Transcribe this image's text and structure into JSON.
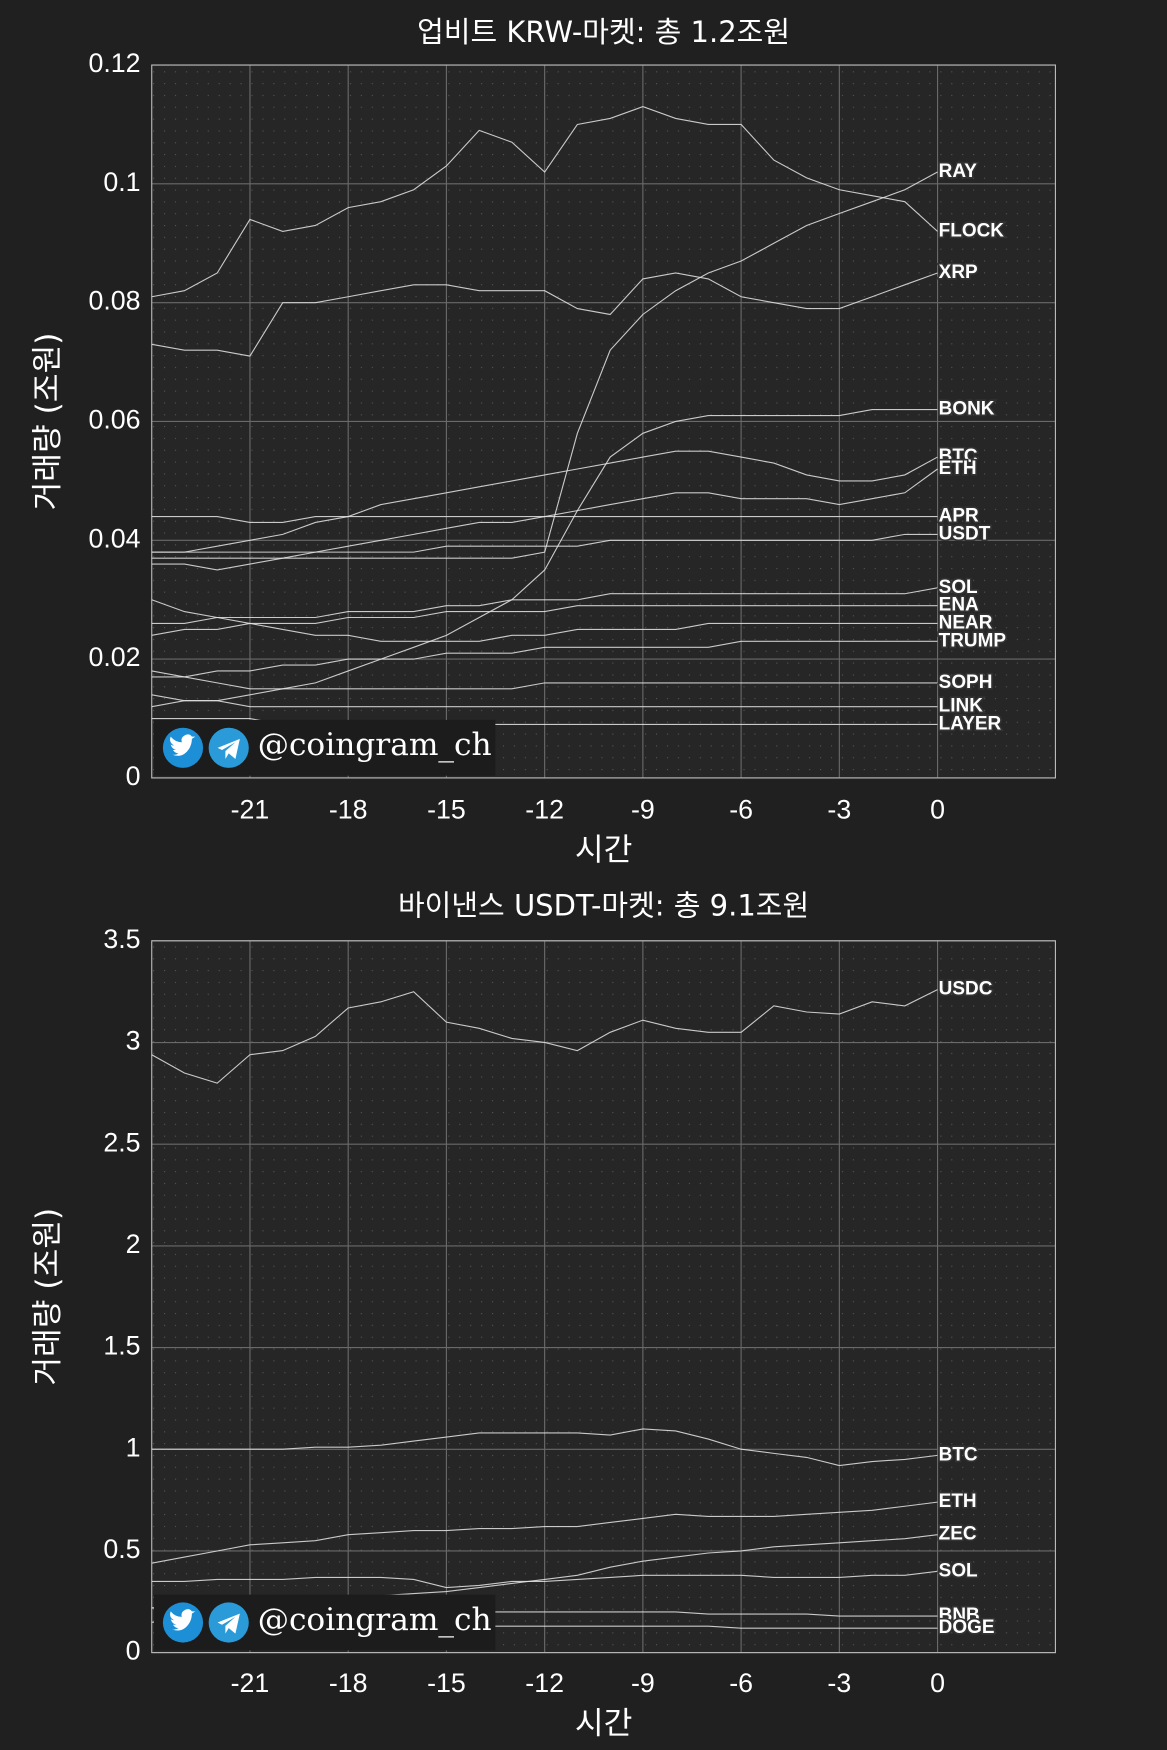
{
  "chart_data": [
    {
      "type": "line",
      "title": "업비트 KRW-마켓: 총 1.2조원",
      "xlabel": "시간",
      "ylabel": "거래량 (조원)",
      "watermark": "@coingram_ch",
      "x": [
        -24,
        -23,
        -22,
        -21,
        -20,
        -19,
        -18,
        -17,
        -16,
        -15,
        -14,
        -13,
        -12,
        -11,
        -10,
        -9,
        -8,
        -7,
        -6,
        -5,
        -4,
        -3,
        -2,
        -1,
        0
      ],
      "xlim": [
        -24,
        3.6
      ],
      "xticks": [
        -21,
        -18,
        -15,
        -12,
        -9,
        -6,
        -3,
        0
      ],
      "ylim": [
        0,
        0.12
      ],
      "yticks": [
        0,
        0.02,
        0.04,
        0.06,
        0.08,
        0.1,
        0.12
      ],
      "grid": true,
      "line_color": "#e6e6e6",
      "series": [
        {
          "name": "RAY",
          "values": [
            0.037,
            0.037,
            0.037,
            0.037,
            0.037,
            0.037,
            0.037,
            0.037,
            0.037,
            0.037,
            0.037,
            0.037,
            0.038,
            0.058,
            0.072,
            0.078,
            0.082,
            0.085,
            0.087,
            0.09,
            0.093,
            0.095,
            0.097,
            0.099,
            0.102
          ]
        },
        {
          "name": "FLOCK",
          "values": [
            0.081,
            0.082,
            0.085,
            0.094,
            0.092,
            0.093,
            0.096,
            0.097,
            0.099,
            0.103,
            0.109,
            0.107,
            0.102,
            0.11,
            0.111,
            0.113,
            0.111,
            0.11,
            0.11,
            0.104,
            0.101,
            0.099,
            0.098,
            0.097,
            0.092
          ]
        },
        {
          "name": "XRP",
          "values": [
            0.073,
            0.072,
            0.072,
            0.071,
            0.08,
            0.08,
            0.081,
            0.082,
            0.083,
            0.083,
            0.082,
            0.082,
            0.082,
            0.079,
            0.078,
            0.084,
            0.085,
            0.084,
            0.081,
            0.08,
            0.079,
            0.079,
            0.081,
            0.083,
            0.085
          ]
        },
        {
          "name": "BONK",
          "values": [
            0.012,
            0.013,
            0.013,
            0.014,
            0.015,
            0.016,
            0.018,
            0.02,
            0.022,
            0.024,
            0.027,
            0.03,
            0.035,
            0.045,
            0.054,
            0.058,
            0.06,
            0.061,
            0.061,
            0.061,
            0.061,
            0.061,
            0.062,
            0.062,
            0.062
          ]
        },
        {
          "name": "BTC",
          "values": [
            0.038,
            0.038,
            0.039,
            0.04,
            0.041,
            0.043,
            0.044,
            0.046,
            0.047,
            0.048,
            0.049,
            0.05,
            0.051,
            0.052,
            0.053,
            0.054,
            0.055,
            0.055,
            0.054,
            0.053,
            0.051,
            0.05,
            0.05,
            0.051,
            0.054
          ]
        },
        {
          "name": "ETH",
          "values": [
            0.036,
            0.036,
            0.035,
            0.036,
            0.037,
            0.038,
            0.039,
            0.04,
            0.041,
            0.042,
            0.043,
            0.043,
            0.044,
            0.045,
            0.046,
            0.047,
            0.048,
            0.048,
            0.047,
            0.047,
            0.047,
            0.046,
            0.047,
            0.048,
            0.052
          ]
        },
        {
          "name": "APR",
          "values": [
            0.044,
            0.044,
            0.044,
            0.043,
            0.043,
            0.044,
            0.044,
            0.044,
            0.044,
            0.044,
            0.044,
            0.044,
            0.044,
            0.044,
            0.044,
            0.044,
            0.044,
            0.044,
            0.044,
            0.044,
            0.044,
            0.044,
            0.044,
            0.044,
            0.044
          ]
        },
        {
          "name": "USDT",
          "values": [
            0.038,
            0.038,
            0.038,
            0.038,
            0.038,
            0.038,
            0.038,
            0.038,
            0.038,
            0.039,
            0.039,
            0.039,
            0.039,
            0.039,
            0.04,
            0.04,
            0.04,
            0.04,
            0.04,
            0.04,
            0.04,
            0.04,
            0.04,
            0.041,
            0.041
          ]
        },
        {
          "name": "SOL",
          "values": [
            0.026,
            0.026,
            0.027,
            0.027,
            0.027,
            0.027,
            0.028,
            0.028,
            0.028,
            0.029,
            0.029,
            0.03,
            0.03,
            0.03,
            0.031,
            0.031,
            0.031,
            0.031,
            0.031,
            0.031,
            0.031,
            0.031,
            0.031,
            0.031,
            0.032
          ]
        },
        {
          "name": "ENA",
          "values": [
            0.024,
            0.025,
            0.025,
            0.026,
            0.026,
            0.026,
            0.027,
            0.027,
            0.027,
            0.028,
            0.028,
            0.028,
            0.028,
            0.029,
            0.029,
            0.029,
            0.029,
            0.029,
            0.029,
            0.029,
            0.029,
            0.029,
            0.029,
            0.029,
            0.029
          ]
        },
        {
          "name": "NEAR",
          "values": [
            0.03,
            0.028,
            0.027,
            0.026,
            0.025,
            0.024,
            0.024,
            0.023,
            0.023,
            0.023,
            0.023,
            0.024,
            0.024,
            0.025,
            0.025,
            0.025,
            0.025,
            0.026,
            0.026,
            0.026,
            0.026,
            0.026,
            0.026,
            0.026,
            0.026
          ]
        },
        {
          "name": "TRUMP",
          "values": [
            0.017,
            0.017,
            0.018,
            0.018,
            0.019,
            0.019,
            0.02,
            0.02,
            0.02,
            0.021,
            0.021,
            0.021,
            0.022,
            0.022,
            0.022,
            0.022,
            0.022,
            0.022,
            0.023,
            0.023,
            0.023,
            0.023,
            0.023,
            0.023,
            0.023
          ]
        },
        {
          "name": "SOPH",
          "values": [
            0.018,
            0.017,
            0.016,
            0.015,
            0.015,
            0.015,
            0.015,
            0.015,
            0.015,
            0.015,
            0.015,
            0.015,
            0.016,
            0.016,
            0.016,
            0.016,
            0.016,
            0.016,
            0.016,
            0.016,
            0.016,
            0.016,
            0.016,
            0.016,
            0.016
          ]
        },
        {
          "name": "LINK",
          "values": [
            0.014,
            0.013,
            0.013,
            0.012,
            0.012,
            0.012,
            0.012,
            0.012,
            0.012,
            0.012,
            0.012,
            0.012,
            0.012,
            0.012,
            0.012,
            0.012,
            0.012,
            0.012,
            0.012,
            0.012,
            0.012,
            0.012,
            0.012,
            0.012,
            0.012
          ]
        },
        {
          "name": "LAYER",
          "values": [
            0.01,
            0.01,
            0.01,
            0.01,
            0.009,
            0.009,
            0.009,
            0.009,
            0.009,
            0.009,
            0.009,
            0.009,
            0.009,
            0.009,
            0.009,
            0.009,
            0.009,
            0.009,
            0.009,
            0.009,
            0.009,
            0.009,
            0.009,
            0.009,
            0.009
          ]
        }
      ]
    },
    {
      "type": "line",
      "title": "바이낸스 USDT-마켓: 총 9.1조원",
      "xlabel": "시간",
      "ylabel": "거래량 (조원)",
      "watermark": "@coingram_ch",
      "x": [
        -24,
        -23,
        -22,
        -21,
        -20,
        -19,
        -18,
        -17,
        -16,
        -15,
        -14,
        -13,
        -12,
        -11,
        -10,
        -9,
        -8,
        -7,
        -6,
        -5,
        -4,
        -3,
        -2,
        -1,
        0
      ],
      "xlim": [
        -24,
        3.6
      ],
      "xticks": [
        -21,
        -18,
        -15,
        -12,
        -9,
        -6,
        -3,
        0
      ],
      "ylim": [
        0,
        3.5
      ],
      "yticks": [
        0,
        0.5,
        1,
        1.5,
        2,
        2.5,
        3,
        3.5
      ],
      "grid": true,
      "line_color": "#e6e6e6",
      "series": [
        {
          "name": "USDC",
          "values": [
            2.94,
            2.85,
            2.8,
            2.94,
            2.96,
            3.03,
            3.17,
            3.2,
            3.25,
            3.1,
            3.07,
            3.02,
            3.0,
            2.96,
            3.05,
            3.11,
            3.07,
            3.05,
            3.05,
            3.18,
            3.15,
            3.14,
            3.2,
            3.18,
            3.26
          ]
        },
        {
          "name": "BTC",
          "values": [
            1.0,
            1.0,
            1.0,
            1.0,
            1.0,
            1.01,
            1.01,
            1.02,
            1.04,
            1.06,
            1.08,
            1.08,
            1.08,
            1.08,
            1.07,
            1.1,
            1.09,
            1.05,
            1.0,
            0.98,
            0.96,
            0.92,
            0.94,
            0.95,
            0.97
          ]
        },
        {
          "name": "ETH",
          "values": [
            0.44,
            0.47,
            0.5,
            0.53,
            0.54,
            0.55,
            0.58,
            0.59,
            0.6,
            0.6,
            0.61,
            0.61,
            0.62,
            0.62,
            0.64,
            0.66,
            0.68,
            0.67,
            0.67,
            0.67,
            0.68,
            0.69,
            0.7,
            0.72,
            0.74
          ]
        },
        {
          "name": "ZEC",
          "values": [
            0.22,
            0.22,
            0.23,
            0.24,
            0.25,
            0.26,
            0.27,
            0.28,
            0.29,
            0.3,
            0.32,
            0.34,
            0.36,
            0.38,
            0.42,
            0.45,
            0.47,
            0.49,
            0.5,
            0.52,
            0.53,
            0.54,
            0.55,
            0.56,
            0.58
          ]
        },
        {
          "name": "SOL",
          "values": [
            0.35,
            0.35,
            0.36,
            0.36,
            0.36,
            0.37,
            0.37,
            0.37,
            0.36,
            0.32,
            0.33,
            0.35,
            0.35,
            0.36,
            0.37,
            0.38,
            0.38,
            0.38,
            0.38,
            0.37,
            0.37,
            0.37,
            0.38,
            0.38,
            0.4
          ]
        },
        {
          "name": "BNB",
          "values": [
            0.22,
            0.22,
            0.22,
            0.21,
            0.21,
            0.21,
            0.21,
            0.21,
            0.2,
            0.2,
            0.2,
            0.2,
            0.2,
            0.2,
            0.2,
            0.2,
            0.2,
            0.19,
            0.19,
            0.19,
            0.19,
            0.18,
            0.18,
            0.18,
            0.18
          ]
        },
        {
          "name": "DOGE",
          "values": [
            0.15,
            0.15,
            0.15,
            0.14,
            0.14,
            0.14,
            0.14,
            0.14,
            0.14,
            0.13,
            0.13,
            0.13,
            0.13,
            0.13,
            0.13,
            0.13,
            0.13,
            0.13,
            0.12,
            0.12,
            0.12,
            0.12,
            0.12,
            0.12,
            0.12
          ]
        }
      ]
    }
  ]
}
